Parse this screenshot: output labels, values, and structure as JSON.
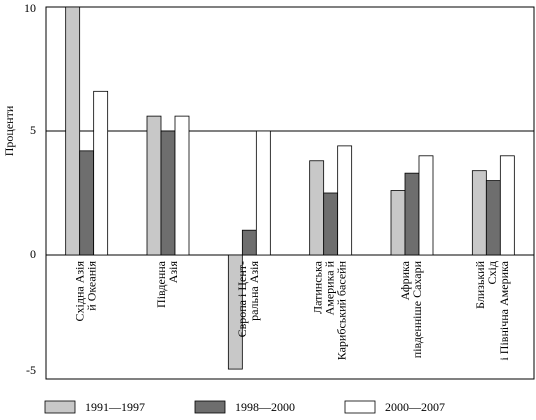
{
  "chart_data": {
    "type": "bar",
    "y_label": "Проценти",
    "categories": [
      [
        "Східна Азія",
        "й Океанія"
      ],
      [
        "Південна",
        "Азія"
      ],
      [
        "Європа і Цент-",
        "ральна Азія"
      ],
      [
        "Латинська",
        "Америка й",
        "Карибський басейн"
      ],
      [
        "Африка",
        "південніше Сахари"
      ],
      [
        "Близький",
        "Схід",
        "і Північна Америка"
      ]
    ],
    "series": [
      {
        "name": "1991—1997",
        "color": "#c8c8c8",
        "values": [
          10,
          5.6,
          -4.6,
          3.8,
          2.6,
          3.4
        ]
      },
      {
        "name": "1998—2000",
        "color": "#6e6e6e",
        "values": [
          4.2,
          5.0,
          1.0,
          2.5,
          3.3,
          3.0
        ]
      },
      {
        "name": "2000—2007",
        "color": "#ffffff",
        "values": [
          6.6,
          5.6,
          5.0,
          4.4,
          4.0,
          4.0
        ]
      }
    ],
    "ylim": [
      -5,
      10
    ],
    "yticks": [
      -5,
      0,
      5,
      10
    ],
    "grid": true
  }
}
